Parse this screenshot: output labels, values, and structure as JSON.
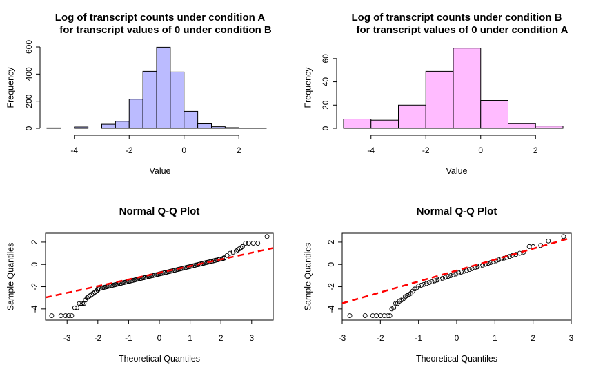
{
  "chart_data": [
    {
      "type": "histogram",
      "title_lines": [
        "Log of transcript counts under condition A",
        "for transcript values of 0 under condition B"
      ],
      "xlabel": "Value",
      "ylabel": "Frequency",
      "fill": "#bbbbff",
      "xlim": [
        -5,
        3
      ],
      "ylim": [
        0,
        600
      ],
      "yticks": [
        0,
        200,
        400,
        600
      ],
      "xticks": [
        -4,
        -2,
        0,
        2
      ],
      "bins": [
        {
          "x0": -5.0,
          "x1": -4.5,
          "count": 3
        },
        {
          "x0": -4.5,
          "x1": -4.0,
          "count": 0
        },
        {
          "x0": -4.0,
          "x1": -3.5,
          "count": 10
        },
        {
          "x0": -3.5,
          "x1": -3.0,
          "count": 0
        },
        {
          "x0": -3.0,
          "x1": -2.5,
          "count": 30
        },
        {
          "x0": -2.5,
          "x1": -2.0,
          "count": 52
        },
        {
          "x0": -2.0,
          "x1": -1.5,
          "count": 215
        },
        {
          "x0": -1.5,
          "x1": -1.0,
          "count": 420
        },
        {
          "x0": -1.0,
          "x1": -0.5,
          "count": 598
        },
        {
          "x0": -0.5,
          "x1": 0.0,
          "count": 415
        },
        {
          "x0": 0.0,
          "x1": 0.5,
          "count": 125
        },
        {
          "x0": 0.5,
          "x1": 1.0,
          "count": 33
        },
        {
          "x0": 1.0,
          "x1": 1.5,
          "count": 12
        },
        {
          "x0": 1.5,
          "x1": 2.0,
          "count": 5
        },
        {
          "x0": 2.0,
          "x1": 2.5,
          "count": 2
        },
        {
          "x0": 2.5,
          "x1": 3.0,
          "count": 1
        }
      ]
    },
    {
      "type": "histogram",
      "title_lines": [
        "Log of transcript counts under condition B",
        "for transcript values of 0 under condition A"
      ],
      "xlabel": "Value",
      "ylabel": "Frequency",
      "fill": "#ffbbff",
      "xlim": [
        -5,
        3
      ],
      "ylim": [
        0,
        70
      ],
      "yticks": [
        0,
        20,
        40,
        60
      ],
      "xticks": [
        -4,
        -2,
        0,
        2
      ],
      "bins": [
        {
          "x0": -5,
          "x1": -4,
          "count": 8
        },
        {
          "x0": -4,
          "x1": -3,
          "count": 7
        },
        {
          "x0": -3,
          "x1": -2,
          "count": 20
        },
        {
          "x0": -2,
          "x1": -1,
          "count": 49
        },
        {
          "x0": -1,
          "x1": 0,
          "count": 69
        },
        {
          "x0": 0,
          "x1": 1,
          "count": 24
        },
        {
          "x0": 1,
          "x1": 2,
          "count": 4
        },
        {
          "x0": 2,
          "x1": 3,
          "count": 2
        }
      ]
    },
    {
      "type": "scatter",
      "title_lines": [
        "Normal Q-Q Plot"
      ],
      "xlabel": "Theoretical Quantiles",
      "ylabel": "Sample Quantiles",
      "xlim": [
        -3.7,
        3.7
      ],
      "ylim": [
        -5.0,
        2.8
      ],
      "xticks": [
        -3,
        -2,
        -1,
        0,
        1,
        2,
        3
      ],
      "yticks": [
        -4,
        -2,
        0,
        2
      ],
      "qq_line": {
        "color": "#ff0000",
        "slope": 0.6,
        "intercept": -0.75
      },
      "points": [
        [
          -3.5,
          -4.6
        ],
        [
          -3.2,
          -4.6
        ],
        [
          -3.05,
          -4.6
        ],
        [
          -2.95,
          -4.6
        ],
        [
          -2.85,
          -4.6
        ],
        [
          -2.75,
          -3.9
        ],
        [
          -2.68,
          -3.9
        ],
        [
          -2.6,
          -3.5
        ],
        [
          -2.55,
          -3.5
        ],
        [
          -2.5,
          -3.5
        ],
        [
          -2.45,
          -3.5
        ],
        [
          -2.4,
          -3.2
        ],
        [
          -2.35,
          -3.0
        ],
        [
          -2.3,
          -2.9
        ],
        [
          -2.25,
          -2.8
        ],
        [
          -2.2,
          -2.7
        ],
        [
          -2.15,
          -2.6
        ],
        [
          -2.1,
          -2.5
        ],
        [
          -2.05,
          -2.4
        ],
        [
          -2.0,
          -2.3
        ],
        [
          2.1,
          0.6
        ],
        [
          2.2,
          0.8
        ],
        [
          2.3,
          1.0
        ],
        [
          2.4,
          1.1
        ],
        [
          2.5,
          1.2
        ],
        [
          2.55,
          1.3
        ],
        [
          2.6,
          1.4
        ],
        [
          2.65,
          1.5
        ],
        [
          2.7,
          1.6
        ],
        [
          2.8,
          1.9
        ],
        [
          2.9,
          1.9
        ],
        [
          3.05,
          1.9
        ],
        [
          3.2,
          1.9
        ],
        [
          3.5,
          2.5
        ]
      ],
      "dense_band": {
        "x_from": -2.0,
        "x_to": 2.1,
        "step": 0.05,
        "y_at_start": -2.2,
        "y_at_end": 0.55
      }
    },
    {
      "type": "scatter",
      "title_lines": [
        "Normal Q-Q Plot"
      ],
      "xlabel": "Theoretical Quantiles",
      "ylabel": "Sample Quantiles",
      "xlim": [
        -3,
        3
      ],
      "ylim": [
        -5.0,
        2.8
      ],
      "xticks": [
        -3,
        -2,
        -1,
        0,
        1,
        2,
        3
      ],
      "yticks": [
        -4,
        -2,
        0,
        2
      ],
      "qq_line": {
        "color": "#ff0000",
        "slope": 0.98,
        "intercept": -0.55
      },
      "points": [
        [
          -2.8,
          -4.6
        ],
        [
          -2.4,
          -4.6
        ],
        [
          -2.2,
          -4.6
        ],
        [
          -2.1,
          -4.6
        ],
        [
          -2.0,
          -4.6
        ],
        [
          -1.9,
          -4.6
        ],
        [
          -1.8,
          -4.6
        ],
        [
          -1.75,
          -4.6
        ],
        [
          -1.7,
          -4.0
        ],
        [
          -1.65,
          -3.9
        ],
        [
          -1.6,
          -3.5
        ],
        [
          -1.55,
          -3.5
        ],
        [
          -1.5,
          -3.3
        ],
        [
          -1.45,
          -3.2
        ],
        [
          -1.4,
          -3.1
        ],
        [
          -1.35,
          -2.9
        ],
        [
          -1.3,
          -2.8
        ],
        [
          -1.25,
          -2.7
        ],
        [
          -1.2,
          -2.6
        ],
        [
          -1.15,
          -2.4
        ],
        [
          -1.1,
          -2.2
        ],
        [
          -1.05,
          -2.1
        ],
        [
          1.55,
          0.9
        ],
        [
          1.65,
          1.0
        ],
        [
          1.75,
          1.1
        ],
        [
          1.9,
          1.6
        ],
        [
          2.0,
          1.6
        ],
        [
          2.2,
          1.7
        ],
        [
          2.4,
          2.1
        ],
        [
          2.8,
          2.5
        ]
      ],
      "dense_band": {
        "x_from": -1.0,
        "x_to": 1.5,
        "step": 0.07,
        "y_at_start": -1.95,
        "y_at_end": 0.85
      }
    }
  ]
}
